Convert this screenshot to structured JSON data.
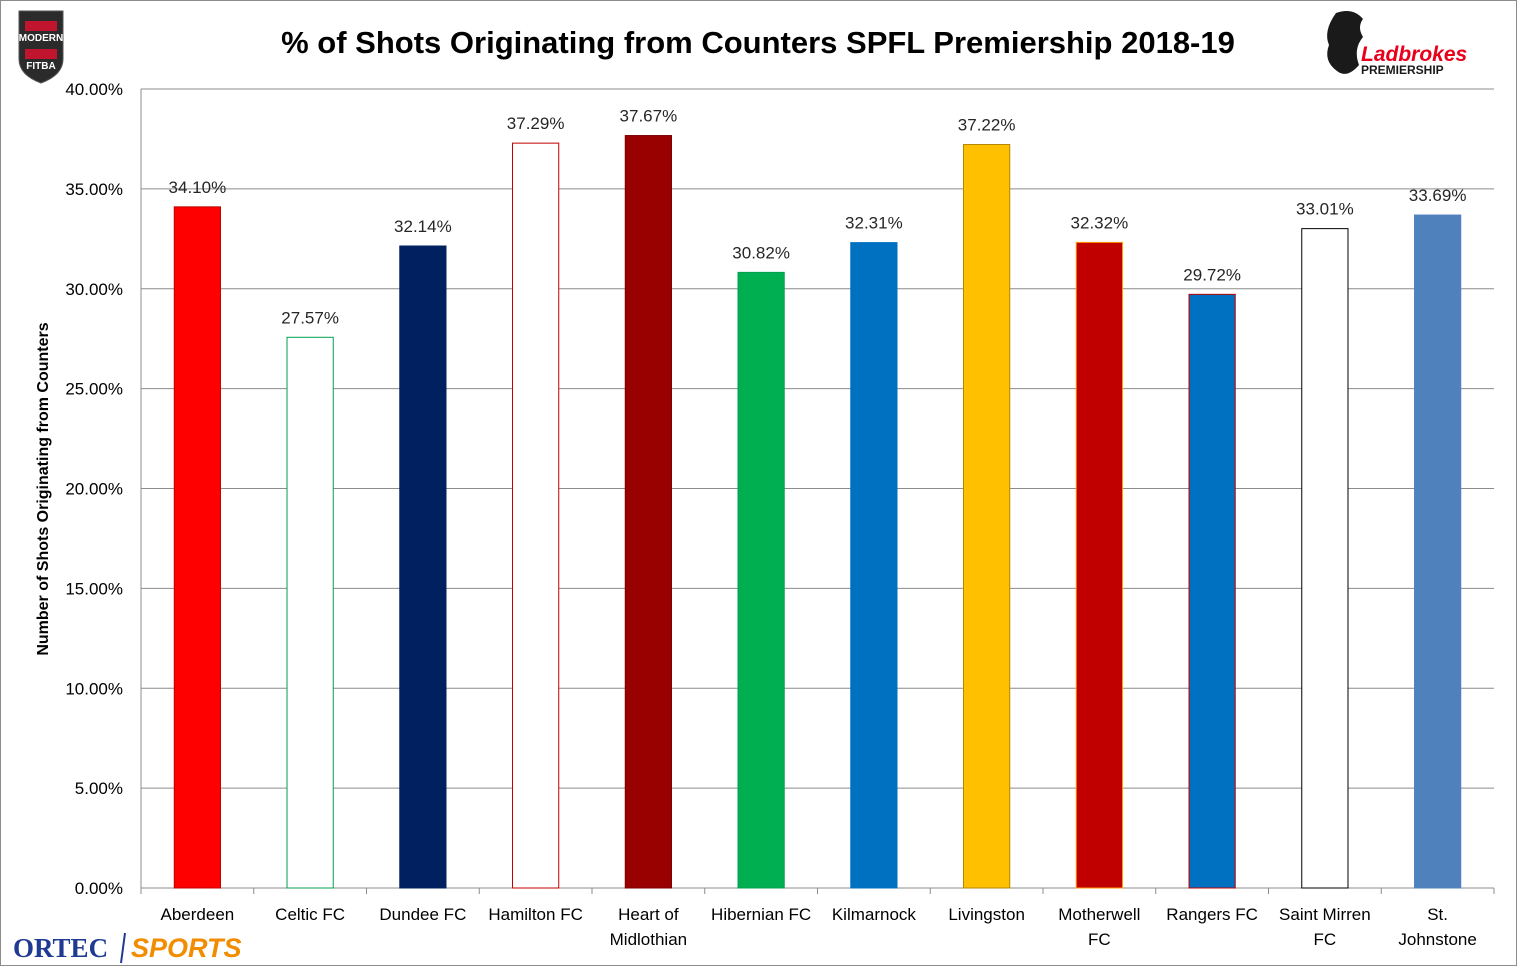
{
  "chart_data": {
    "type": "bar",
    "title": "% of Shots Originating from Counters SPFL Premiership 2018-19",
    "ylabel": "Number of Shots Originating from Counters",
    "xlabel": "",
    "ylim": [
      0,
      40
    ],
    "yticks": [
      "0.00%",
      "5.00%",
      "10.00%",
      "15.00%",
      "20.00%",
      "25.00%",
      "30.00%",
      "35.00%",
      "40.00%"
    ],
    "grid": true,
    "legend": "none",
    "categories": [
      [
        "Aberdeen"
      ],
      [
        "Celtic FC"
      ],
      [
        "Dundee FC"
      ],
      [
        "Hamilton FC"
      ],
      [
        "Heart of",
        "Midlothian"
      ],
      [
        "Hibernian FC"
      ],
      [
        "Kilmarnock"
      ],
      [
        "Livingston"
      ],
      [
        "Motherwell",
        "FC"
      ],
      [
        "Rangers FC"
      ],
      [
        "Saint Mirren",
        "FC"
      ],
      [
        "St.",
        "Johnstone"
      ]
    ],
    "values": [
      34.1,
      27.57,
      32.14,
      37.29,
      37.67,
      30.82,
      32.31,
      37.22,
      32.32,
      29.72,
      33.01,
      33.69
    ],
    "data_labels": [
      "34.10%",
      "27.57%",
      "32.14%",
      "37.29%",
      "37.67%",
      "30.82%",
      "32.31%",
      "37.22%",
      "32.32%",
      "29.72%",
      "33.01%",
      "33.69%"
    ],
    "bar_fills": [
      "#ff0000",
      "#ffffff",
      "#002060",
      "#ffffff",
      "#990000",
      "#00b050",
      "#0070c0",
      "#ffc000",
      "#c00000",
      "#0070c0",
      "#ffffff",
      "#4f81bd"
    ],
    "bar_strokes": [
      "#c00000",
      "#00a050",
      "#002060",
      "#c00000",
      "#7a0000",
      "#00a050",
      "#0070c0",
      "#b38600",
      "#ff9900",
      "#c00000",
      "#000000",
      "#4f81bd"
    ]
  },
  "logos": {
    "top_left_line1": "MODERN",
    "top_left_line2": "FITBA",
    "top_right_line1": "Ladbrokes",
    "top_right_line2": "PREMIERSHIP",
    "bottom_left_part1": "ORTEC",
    "bottom_left_part2": "SPORTS"
  }
}
